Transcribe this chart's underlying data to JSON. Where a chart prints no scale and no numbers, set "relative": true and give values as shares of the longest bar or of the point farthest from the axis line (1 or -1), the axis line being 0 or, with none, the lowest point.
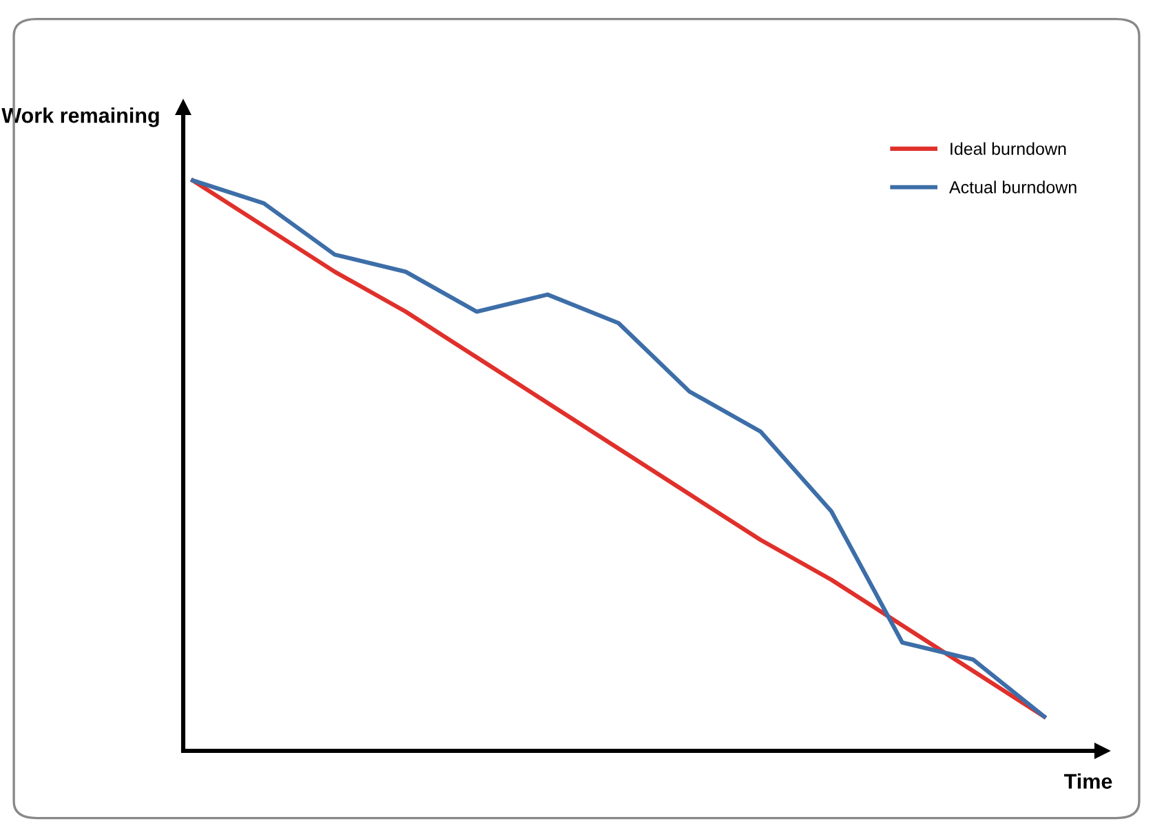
{
  "chart_data": {
    "type": "line",
    "relative": true,
    "ylabel": "Work remaining",
    "xlabel": "Time",
    "categories": [
      null,
      null,
      null,
      null,
      null,
      null,
      null,
      null,
      null,
      null,
      null,
      null,
      null
    ],
    "series": [
      {
        "name": "Ideal burndown",
        "color": "#e0302b",
        "values": [
          1.0,
          0.92,
          0.84,
          0.77,
          0.69,
          0.61,
          0.53,
          0.45,
          0.37,
          0.3,
          0.22,
          0.14,
          0.06
        ]
      },
      {
        "name": "Actual burndown",
        "color": "#3d6ea8",
        "values": [
          1.0,
          0.96,
          0.87,
          0.84,
          0.77,
          0.8,
          0.75,
          0.63,
          0.56,
          0.42,
          0.19,
          0.16,
          0.06
        ]
      }
    ],
    "legend": "top right",
    "grid": false,
    "marker": "none",
    "line_style": "solid"
  }
}
